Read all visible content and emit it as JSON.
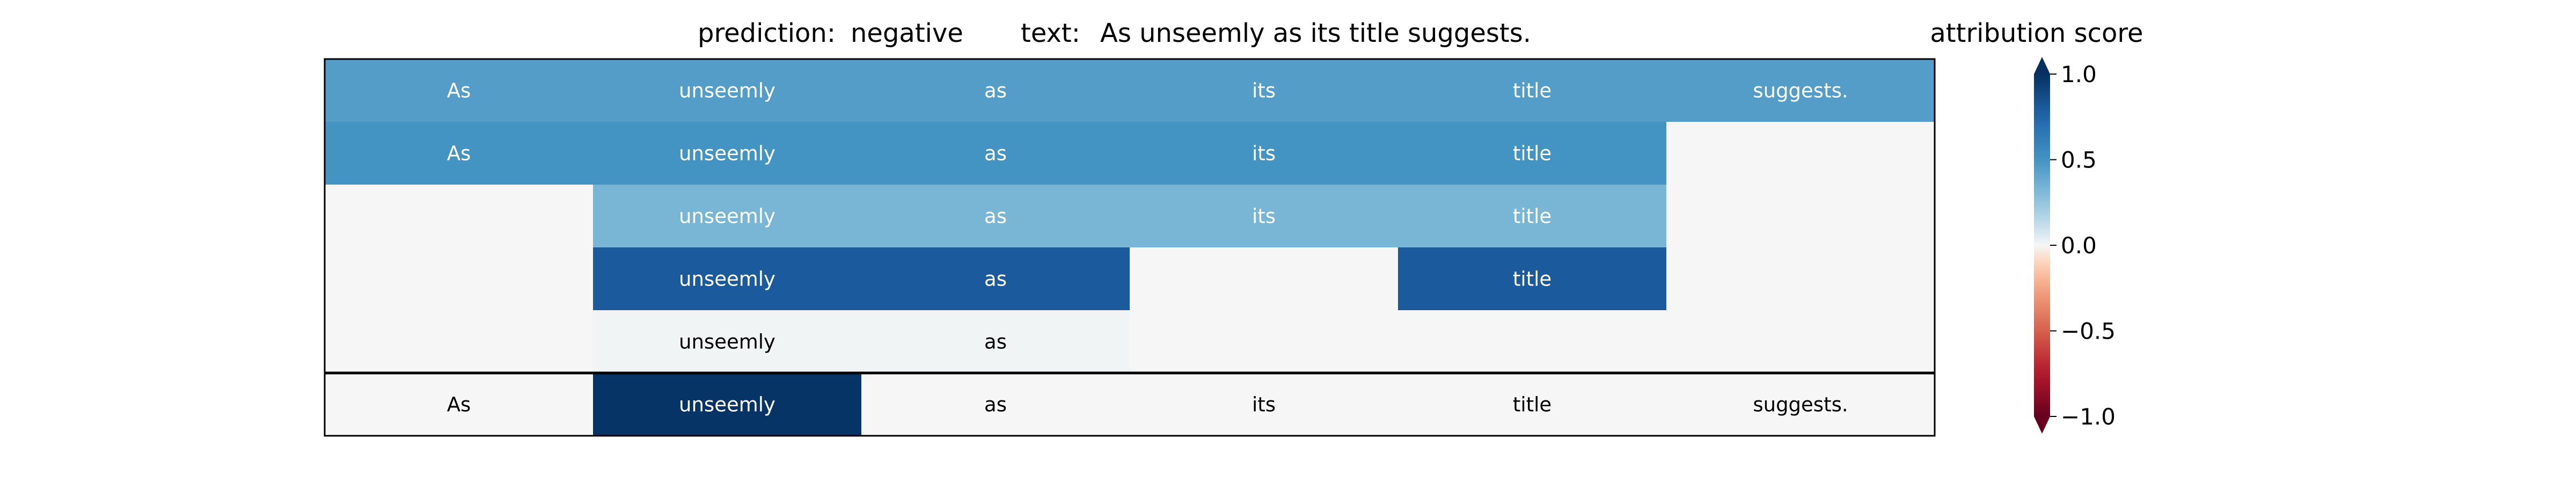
{
  "header": {
    "prediction_label": "prediction:",
    "prediction_value": "negative",
    "text_label": "text:",
    "text_value": "As unseemly as its title suggests."
  },
  "colorbar": {
    "title": "attribution score",
    "ticks": [
      "1.0",
      "0.5",
      "0.0",
      "−0.5",
      "−1.0"
    ],
    "tick_values": [
      1.0,
      0.5,
      0.0,
      -0.5,
      -1.0
    ],
    "range": [
      -1,
      1
    ],
    "colormap": "RdBu",
    "extend": "both"
  },
  "chart_data": {
    "type": "heatmap",
    "title": "",
    "tokens": [
      "As",
      "unseemly",
      "as",
      "its",
      "title",
      "suggests."
    ],
    "rows": [
      {
        "cells": [
          {
            "text": "As",
            "value": 0.45
          },
          {
            "text": "unseemly",
            "value": 0.45
          },
          {
            "text": "as",
            "value": 0.45
          },
          {
            "text": "its",
            "value": 0.45
          },
          {
            "text": "title",
            "value": 0.45
          },
          {
            "text": "suggests.",
            "value": 0.45
          }
        ]
      },
      {
        "cells": [
          {
            "text": "As",
            "value": 0.5
          },
          {
            "text": "unseemly",
            "value": 0.5
          },
          {
            "text": "as",
            "value": 0.5
          },
          {
            "text": "its",
            "value": 0.5
          },
          {
            "text": "title",
            "value": 0.5
          },
          {
            "text": "",
            "value": 0.0
          }
        ]
      },
      {
        "cells": [
          {
            "text": "",
            "value": 0.0
          },
          {
            "text": "unseemly",
            "value": 0.33
          },
          {
            "text": "as",
            "value": 0.33
          },
          {
            "text": "its",
            "value": 0.33
          },
          {
            "text": "title",
            "value": 0.33
          },
          {
            "text": "",
            "value": 0.0
          }
        ]
      },
      {
        "cells": [
          {
            "text": "",
            "value": 0.0
          },
          {
            "text": "unseemly",
            "value": 0.8
          },
          {
            "text": "as",
            "value": 0.8
          },
          {
            "text": "",
            "value": 0.0
          },
          {
            "text": "title",
            "value": 0.8
          },
          {
            "text": "",
            "value": 0.0
          }
        ]
      },
      {
        "cells": [
          {
            "text": "",
            "value": 0.0
          },
          {
            "text": "unseemly",
            "value": 0.01
          },
          {
            "text": "as",
            "value": 0.01
          },
          {
            "text": "",
            "value": 0.0
          },
          {
            "text": "",
            "value": 0.0
          },
          {
            "text": "",
            "value": 0.0
          }
        ]
      }
    ],
    "summary_row": {
      "cells": [
        {
          "text": "As",
          "value": 0.0
        },
        {
          "text": "unseemly",
          "value": 0.98
        },
        {
          "text": "as",
          "value": 0.0
        },
        {
          "text": "its",
          "value": 0.0
        },
        {
          "text": "title",
          "value": 0.0
        },
        {
          "text": "suggests.",
          "value": 0.0
        }
      ]
    }
  }
}
